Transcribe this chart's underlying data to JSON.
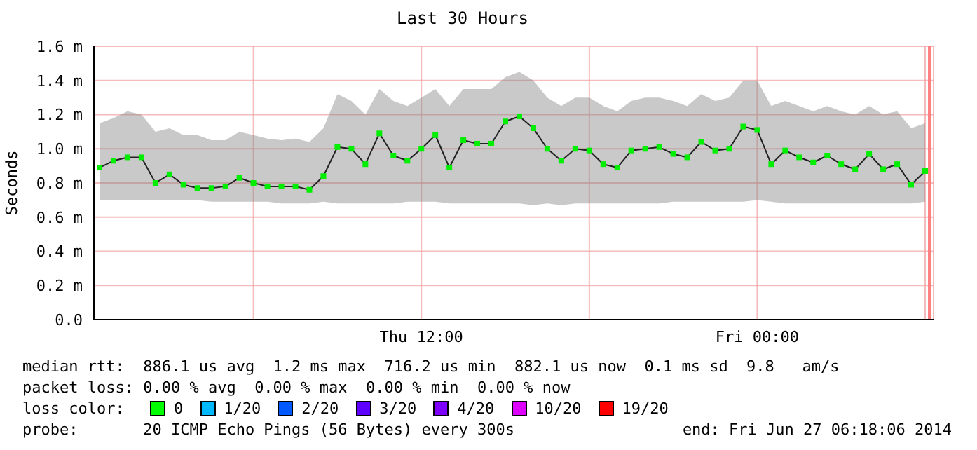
{
  "chart_data": {
    "type": "line",
    "title": "Last 30 Hours",
    "ylabel": "Seconds",
    "x": [
      "2014-06-26T00:30",
      "2014-06-26T01:00",
      "2014-06-26T01:30",
      "2014-06-26T02:00",
      "2014-06-26T02:30",
      "2014-06-26T03:00",
      "2014-06-26T03:30",
      "2014-06-26T04:00",
      "2014-06-26T04:30",
      "2014-06-26T05:00",
      "2014-06-26T05:30",
      "2014-06-26T06:00",
      "2014-06-26T06:30",
      "2014-06-26T07:00",
      "2014-06-26T07:30",
      "2014-06-26T08:00",
      "2014-06-26T08:30",
      "2014-06-26T09:00",
      "2014-06-26T09:30",
      "2014-06-26T10:00",
      "2014-06-26T10:30",
      "2014-06-26T11:00",
      "2014-06-26T11:30",
      "2014-06-26T12:00",
      "2014-06-26T12:30",
      "2014-06-26T13:00",
      "2014-06-26T13:30",
      "2014-06-26T14:00",
      "2014-06-26T14:30",
      "2014-06-26T15:00",
      "2014-06-26T15:30",
      "2014-06-26T16:00",
      "2014-06-26T16:30",
      "2014-06-26T17:00",
      "2014-06-26T17:30",
      "2014-06-26T18:00",
      "2014-06-26T18:30",
      "2014-06-26T19:00",
      "2014-06-26T19:30",
      "2014-06-26T20:00",
      "2014-06-26T20:30",
      "2014-06-26T21:00",
      "2014-06-26T21:30",
      "2014-06-26T22:00",
      "2014-06-26T22:30",
      "2014-06-26T23:00",
      "2014-06-26T23:30",
      "2014-06-27T00:00",
      "2014-06-27T00:30",
      "2014-06-27T01:00",
      "2014-06-27T01:30",
      "2014-06-27T02:00",
      "2014-06-27T02:30",
      "2014-06-27T03:00",
      "2014-06-27T03:30",
      "2014-06-27T04:00",
      "2014-06-27T04:30",
      "2014-06-27T05:00",
      "2014-06-27T05:30",
      "2014-06-27T06:00"
    ],
    "series": [
      {
        "color": "#00ee00",
        "values": [
          0.89,
          0.93,
          0.95,
          0.95,
          0.8,
          0.85,
          0.79,
          0.77,
          0.77,
          0.78,
          0.83,
          0.8,
          0.78,
          0.78,
          0.78,
          0.76,
          0.84,
          1.01,
          1.0,
          0.91,
          1.09,
          0.96,
          0.93,
          1.0,
          1.08,
          0.89,
          1.05,
          1.03,
          1.03,
          1.16,
          1.19,
          1.12,
          1.0,
          0.93,
          1.0,
          0.99,
          0.91,
          0.89,
          0.99,
          1.0,
          1.01,
          0.97,
          0.95,
          1.04,
          0.99,
          1.0,
          1.13,
          1.11,
          0.91,
          0.99,
          0.95,
          0.92,
          0.96,
          0.91,
          0.88,
          0.97,
          0.88,
          0.91,
          0.79,
          0.87
        ],
        "lower": [
          0.7,
          0.7,
          0.7,
          0.7,
          0.7,
          0.7,
          0.7,
          0.7,
          0.69,
          0.69,
          0.69,
          0.69,
          0.69,
          0.68,
          0.68,
          0.68,
          0.69,
          0.68,
          0.68,
          0.68,
          0.68,
          0.68,
          0.69,
          0.69,
          0.69,
          0.68,
          0.68,
          0.68,
          0.68,
          0.68,
          0.68,
          0.67,
          0.68,
          0.67,
          0.68,
          0.68,
          0.68,
          0.68,
          0.68,
          0.68,
          0.68,
          0.69,
          0.69,
          0.69,
          0.69,
          0.69,
          0.69,
          0.7,
          0.69,
          0.68,
          0.68,
          0.68,
          0.68,
          0.68,
          0.68,
          0.68,
          0.68,
          0.68,
          0.68,
          0.69
        ],
        "upper": [
          1.15,
          1.18,
          1.22,
          1.2,
          1.1,
          1.12,
          1.08,
          1.08,
          1.05,
          1.05,
          1.1,
          1.08,
          1.06,
          1.05,
          1.06,
          1.04,
          1.12,
          1.32,
          1.28,
          1.2,
          1.35,
          1.28,
          1.25,
          1.3,
          1.35,
          1.25,
          1.35,
          1.35,
          1.35,
          1.42,
          1.45,
          1.4,
          1.3,
          1.25,
          1.3,
          1.3,
          1.25,
          1.22,
          1.28,
          1.3,
          1.3,
          1.28,
          1.25,
          1.32,
          1.28,
          1.3,
          1.4,
          1.4,
          1.25,
          1.28,
          1.25,
          1.22,
          1.25,
          1.22,
          1.2,
          1.25,
          1.2,
          1.22,
          1.12,
          1.15
        ]
      }
    ],
    "xlim": [
      "2014-06-26T00:18",
      "2014-06-27T06:18"
    ],
    "xticks": [
      {
        "value": "2014-06-26T06:00",
        "label": null
      },
      {
        "value": "2014-06-26T12:00",
        "label": "Thu 12:00"
      },
      {
        "value": "2014-06-26T18:00",
        "label": null
      },
      {
        "value": "2014-06-27T00:00",
        "label": "Fri 00:00"
      },
      {
        "value": "2014-06-27T06:00",
        "label": null
      }
    ],
    "ylim": [
      0,
      1.6
    ],
    "yticks": [
      {
        "value": 0,
        "label": "0.0"
      },
      {
        "value": 0.2,
        "label": "0.2 m"
      },
      {
        "value": 0.4,
        "label": "0.4 m"
      },
      {
        "value": 0.6,
        "label": "0.6 m"
      },
      {
        "value": 0.8,
        "label": "0.8 m"
      },
      {
        "value": 1.0,
        "label": "1.0 m"
      },
      {
        "value": 1.2,
        "label": "1.2 m"
      },
      {
        "value": 1.4,
        "label": "1.4 m"
      },
      {
        "value": 1.6,
        "label": "1.6 m"
      }
    ],
    "grid": true,
    "marker": "square",
    "legend": false,
    "ref_lines": [
      {
        "axis": "x",
        "value": "2014-06-27T06:09",
        "color": "#ff8080"
      }
    ],
    "annotations": [
      "median rtt:  886.1 us avg  1.2 ms max  716.2 us min  882.1 us now  0.1 ms sd  9.8   am/s",
      "packet loss: 0.00 % avg  0.00 % max  0.00 % min  0.00 % now",
      "loss color:",
      "0",
      "1/20",
      "2/20",
      "3/20",
      "4/20",
      "10/20",
      "19/20",
      "probe:       20 ICMP Echo Pings (56 Bytes) every 300s",
      "end: Fri Jun 27 06:18:06 2014"
    ]
  }
}
